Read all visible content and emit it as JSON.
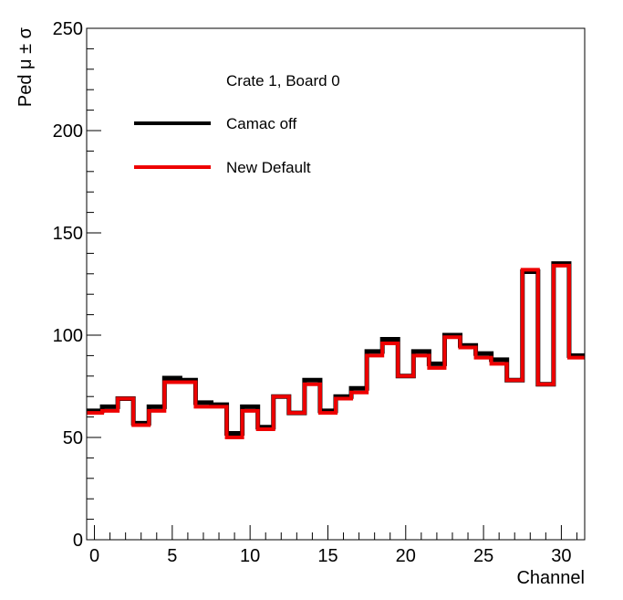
{
  "chart_data": {
    "type": "histogram",
    "title": "",
    "xlabel": "Channel",
    "ylabel": "Ped μ ± σ",
    "xlim": [
      -0.5,
      31.5
    ],
    "ylim": [
      0,
      250
    ],
    "x_ticks": [
      0,
      5,
      10,
      15,
      20,
      25,
      30
    ],
    "y_ticks": [
      0,
      50,
      100,
      150,
      200,
      250
    ],
    "grid": false,
    "legend_header": "Crate 1, Board 0",
    "legend_position": "top-left",
    "series": [
      {
        "name": "Camac off",
        "color": "#000000",
        "values": [
          63,
          65,
          69,
          57,
          65,
          79,
          78,
          67,
          66,
          52,
          65,
          55,
          70,
          62,
          78,
          63,
          70,
          74,
          92,
          98,
          80,
          92,
          86,
          100,
          95,
          91,
          88,
          78,
          131,
          76,
          135,
          90
        ]
      },
      {
        "name": "New Default",
        "color": "#ee0000",
        "values": [
          62,
          63,
          69,
          56,
          63,
          77,
          77,
          65,
          65,
          50,
          63,
          54,
          70,
          62,
          76,
          62,
          69,
          72,
          90,
          96,
          80,
          90,
          84,
          99,
          94,
          89,
          86,
          78,
          132,
          76,
          134,
          89
        ]
      }
    ]
  }
}
